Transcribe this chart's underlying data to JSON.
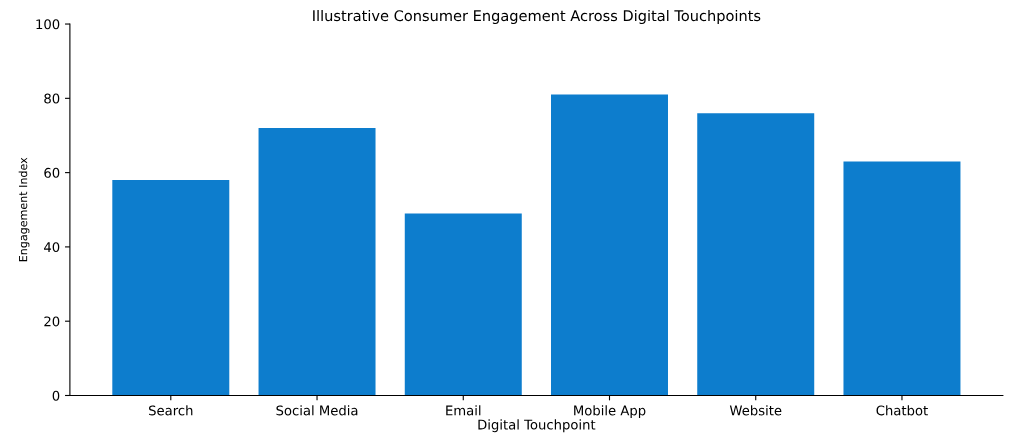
{
  "chart_data": {
    "type": "bar",
    "title": "Illustrative Consumer Engagement Across Digital Touchpoints",
    "xlabel": "Digital Touchpoint",
    "ylabel": "Engagement Index",
    "categories": [
      "Search",
      "Social Media",
      "Email",
      "Mobile App",
      "Website",
      "Chatbot"
    ],
    "values": [
      58,
      72,
      49,
      81,
      76,
      63
    ],
    "color": "#0d7dcd",
    "ylim": [
      0,
      100
    ],
    "yticks": [
      0,
      20,
      40,
      60,
      80,
      100
    ],
    "grid": false,
    "legend": false
  }
}
